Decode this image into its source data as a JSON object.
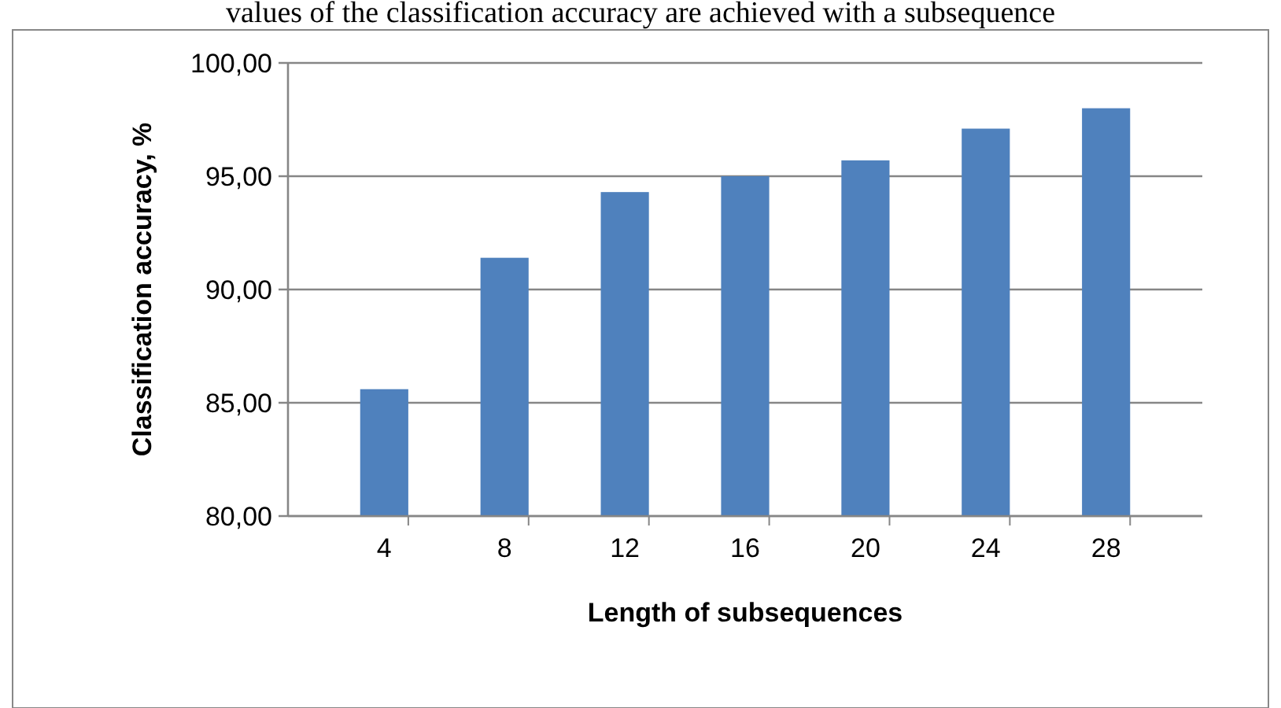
{
  "chart_data": {
    "type": "bar",
    "xlabel": "Length of subsequences",
    "ylabel": "Classification accuracy, %",
    "annotations": [
      "values of the classification accuracy are achieved with a subsequence"
    ],
    "categories": [
      "4",
      "8",
      "12",
      "16",
      "20",
      "24",
      "28"
    ],
    "values": [
      85.6,
      91.4,
      94.3,
      95.0,
      95.7,
      97.1,
      98.0
    ],
    "color": "#4f81bd",
    "ylim": [
      80,
      100
    ],
    "yticks": [
      {
        "value": 80,
        "label": "80,00"
      },
      {
        "value": 85,
        "label": "85,00"
      },
      {
        "value": 90,
        "label": "90,00"
      },
      {
        "value": 95,
        "label": "95,00"
      },
      {
        "value": 100,
        "label": "100,00"
      }
    ],
    "grid": "y"
  }
}
